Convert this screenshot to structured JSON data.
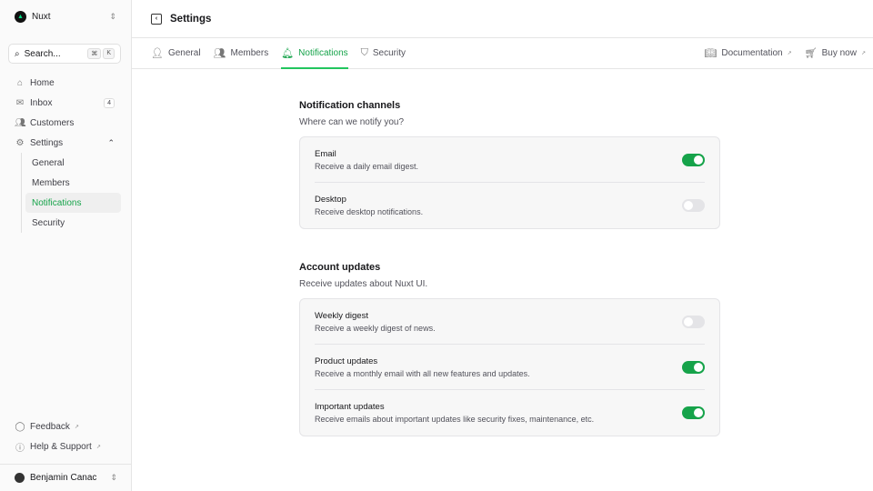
{
  "sidebar": {
    "brand": "Nuxt",
    "search_placeholder": "Search...",
    "kbd": [
      "⌘",
      "K"
    ],
    "items": [
      {
        "label": "Home",
        "icon": "home-icon"
      },
      {
        "label": "Inbox",
        "icon": "inbox-icon",
        "badge": "4"
      },
      {
        "label": "Customers",
        "icon": "users-icon"
      },
      {
        "label": "Settings",
        "icon": "gear-icon"
      }
    ],
    "settings_sub": [
      "General",
      "Members",
      "Notifications",
      "Security"
    ],
    "footer": [
      "Feedback",
      "Help & Support"
    ],
    "user": "Benjamin Canac"
  },
  "header": {
    "title": "Settings"
  },
  "tabs": [
    "General",
    "Members",
    "Notifications",
    "Security"
  ],
  "links": [
    "Documentation",
    "Buy now"
  ],
  "sections": [
    {
      "title": "Notification channels",
      "desc": "Where can we notify you?",
      "rows": [
        {
          "title": "Email",
          "desc": "Receive a daily email digest.",
          "on": true
        },
        {
          "title": "Desktop",
          "desc": "Receive desktop notifications.",
          "on": false
        }
      ]
    },
    {
      "title": "Account updates",
      "desc": "Receive updates about Nuxt UI.",
      "rows": [
        {
          "title": "Weekly digest",
          "desc": "Receive a weekly digest of news.",
          "on": false
        },
        {
          "title": "Product updates",
          "desc": "Receive a monthly email with all new features and updates.",
          "on": true
        },
        {
          "title": "Important updates",
          "desc": "Receive emails about important updates like security fixes, maintenance, etc.",
          "on": true
        }
      ]
    }
  ],
  "colors": {
    "accent": "#16a34a"
  }
}
